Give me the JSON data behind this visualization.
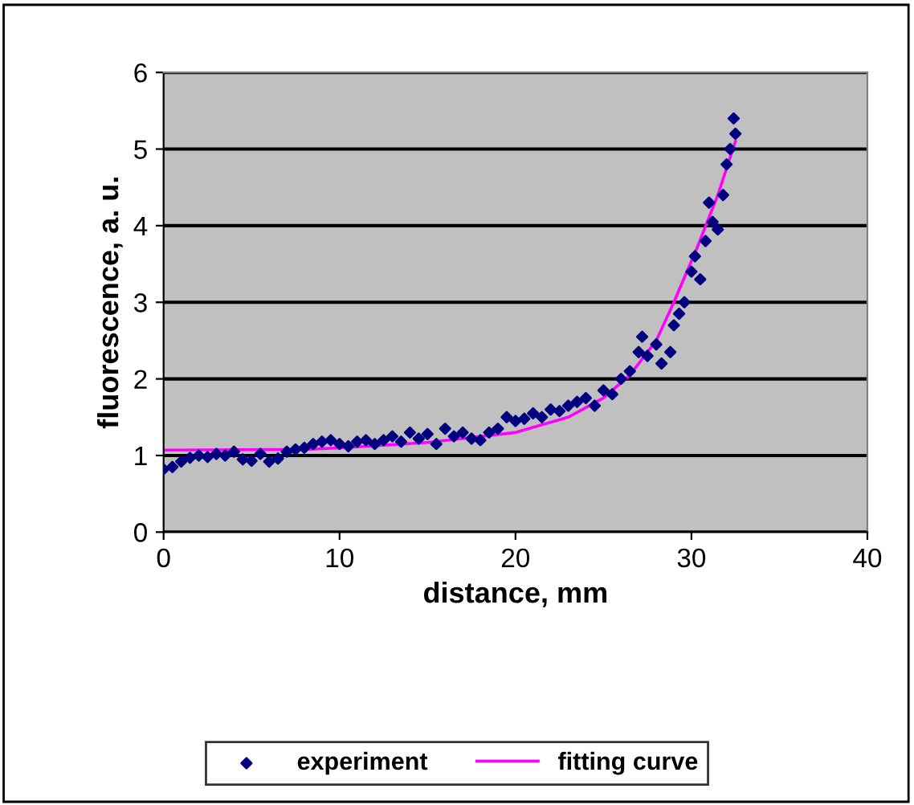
{
  "chart_data": {
    "type": "scatter",
    "xlabel": "distance, mm",
    "ylabel": "fluorescence, a. u.",
    "xlim": [
      0,
      40
    ],
    "xticks": [
      0,
      10,
      20,
      30,
      40
    ],
    "ylim": [
      0,
      6
    ],
    "yticks": [
      0,
      1,
      2,
      3,
      4,
      5,
      6
    ],
    "grid": "y",
    "legend": "bottom",
    "series": [
      {
        "name": "experiment",
        "marker": "diamond",
        "color": "#000080",
        "x": [
          0,
          0.5,
          1,
          1.5,
          2,
          2.5,
          3,
          3.5,
          4,
          4.5,
          5,
          5.5,
          6,
          6.5,
          7,
          7.5,
          8,
          8.5,
          9,
          9.5,
          10,
          10.5,
          11,
          11.5,
          12,
          12.5,
          13,
          13.5,
          14,
          14.5,
          15,
          15.5,
          16,
          16.5,
          17,
          17.5,
          18,
          18.5,
          19,
          19.5,
          20,
          20.5,
          21,
          21.5,
          22,
          22.5,
          23,
          23.5,
          24,
          24.5,
          25,
          25.5,
          26,
          26.5,
          27,
          27.2,
          27.5,
          28,
          28.3,
          28.8,
          29,
          29.3,
          29.6,
          30,
          30.2,
          30.5,
          30.8,
          31,
          31.2,
          31.5,
          31.8,
          32,
          32.2,
          32.4,
          32.5
        ],
        "values": [
          0.82,
          0.85,
          0.92,
          0.97,
          1.0,
          0.98,
          1.02,
          1.0,
          1.05,
          0.95,
          0.93,
          1.02,
          0.92,
          0.96,
          1.05,
          1.08,
          1.1,
          1.15,
          1.18,
          1.2,
          1.15,
          1.12,
          1.18,
          1.2,
          1.15,
          1.2,
          1.25,
          1.18,
          1.3,
          1.22,
          1.28,
          1.15,
          1.35,
          1.25,
          1.3,
          1.22,
          1.2,
          1.3,
          1.35,
          1.5,
          1.45,
          1.48,
          1.55,
          1.5,
          1.6,
          1.58,
          1.65,
          1.7,
          1.75,
          1.65,
          1.85,
          1.8,
          2.0,
          2.1,
          2.35,
          2.55,
          2.3,
          2.45,
          2.2,
          2.35,
          2.7,
          2.85,
          3.0,
          3.4,
          3.6,
          3.3,
          3.8,
          4.3,
          4.05,
          3.95,
          4.4,
          4.8,
          5.0,
          5.4,
          5.2
        ]
      },
      {
        "name": "fitting curve",
        "type": "line",
        "marker": "none",
        "line_style": "solid",
        "color": "#ff00ff",
        "x": [
          0,
          8,
          10,
          15,
          20,
          23,
          25,
          26.5,
          28,
          29,
          30.3,
          31.5,
          32.5
        ],
        "values": [
          1.07,
          1.08,
          1.1,
          1.17,
          1.3,
          1.5,
          1.75,
          2.05,
          2.5,
          3.0,
          3.7,
          4.4,
          5.1
        ]
      }
    ]
  }
}
